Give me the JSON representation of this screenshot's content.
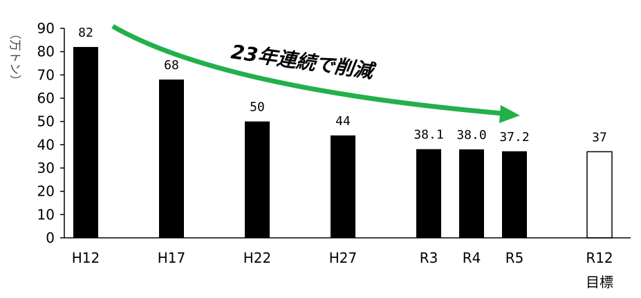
{
  "chart_data": {
    "type": "bar",
    "ylabel": "（万トン）",
    "ylim": [
      0,
      90
    ],
    "yticks": [
      0,
      10,
      20,
      30,
      40,
      50,
      60,
      70,
      80,
      90
    ],
    "grid": false,
    "categories": [
      "H12",
      "H17",
      "H22",
      "H27",
      "R3",
      "R4",
      "R5",
      "R12"
    ],
    "category_sublabels": [
      "",
      "",
      "",
      "",
      "",
      "",
      "",
      "目標"
    ],
    "values": [
      82,
      68,
      50,
      44,
      38.1,
      38.0,
      37.2,
      37
    ],
    "data_labels": [
      "82",
      "68",
      "50",
      "44",
      "38.1",
      "38.0",
      "37.2",
      "37"
    ],
    "bar_styles": [
      "filled",
      "filled",
      "filled",
      "filled",
      "filled",
      "filled",
      "filled",
      "outline"
    ],
    "colors": {
      "bar": "#000000",
      "arrow": "#22b04b",
      "axis": "#000000"
    },
    "annotation": {
      "text": "23年連続で削減",
      "arrow": "curved-down-right"
    }
  }
}
